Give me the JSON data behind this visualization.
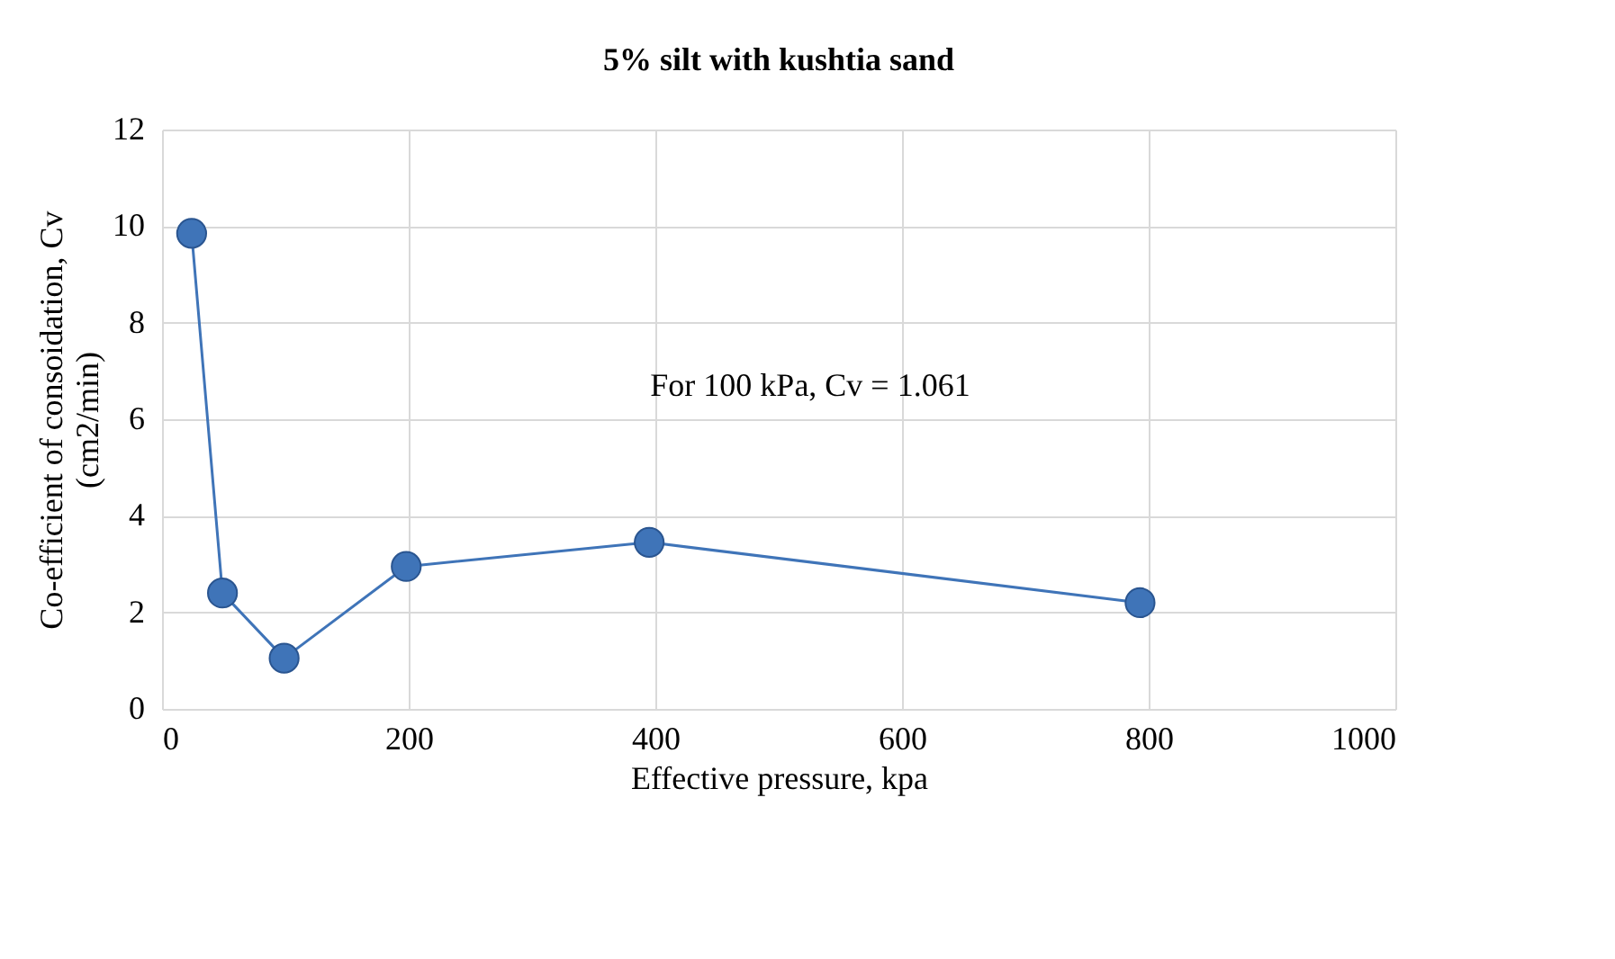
{
  "chart_data": {
    "type": "line",
    "title": "5% silt with kushtia sand",
    "xlabel": "Effective pressure, kpa",
    "ylabel": "Co-efficient of consoidation, Cv (cm2/min)",
    "x": [
      24,
      49,
      99,
      198,
      395,
      793
    ],
    "series": [
      {
        "color": "#3f74b8",
        "values": [
          9.85,
          2.4,
          1.05,
          2.95,
          3.45,
          2.2
        ]
      }
    ],
    "xlim": [
      0,
      1000
    ],
    "xticks": [
      0,
      200,
      400,
      600,
      800,
      1000
    ],
    "ylim": [
      0,
      12
    ],
    "yticks": [
      0,
      2,
      4,
      6,
      8,
      10,
      12
    ],
    "grid": true,
    "marker": "circle",
    "line_style": "solid",
    "annotations": [
      "For 100 kPa, Cv = 1.061"
    ]
  }
}
